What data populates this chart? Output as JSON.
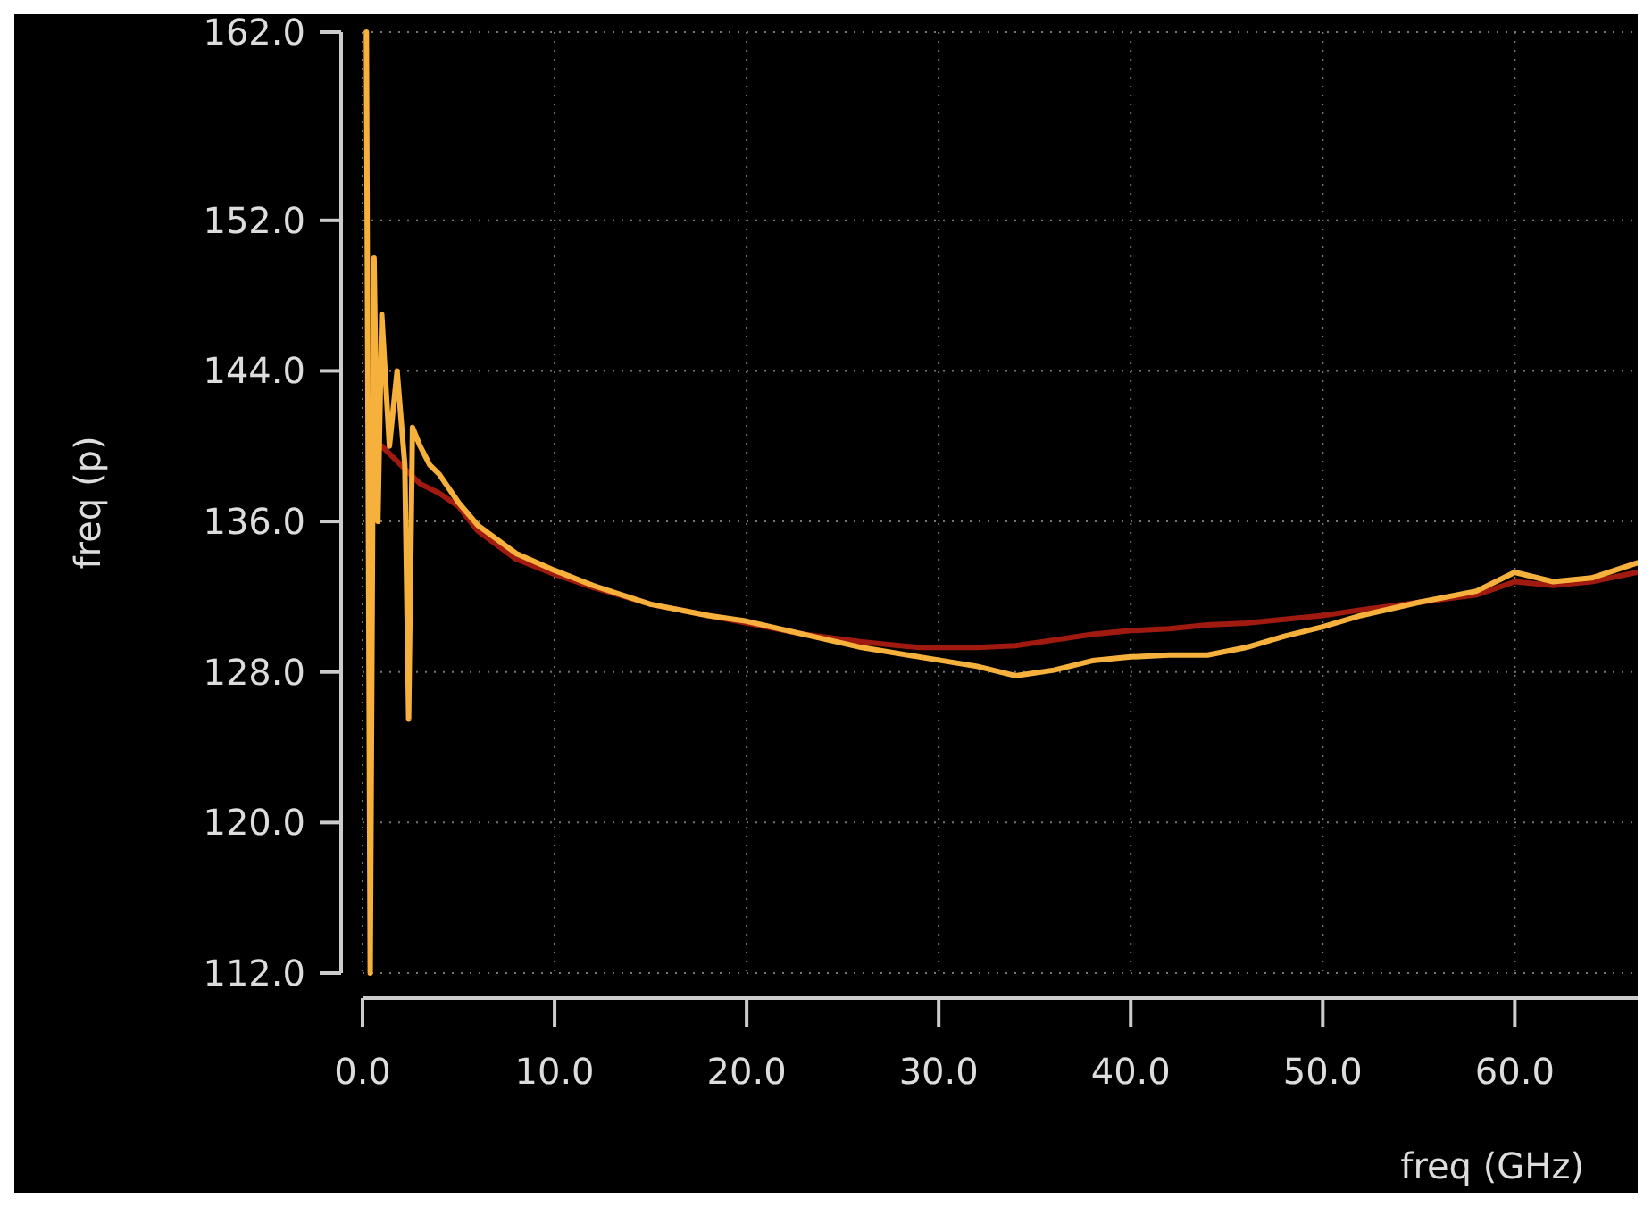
{
  "chart_data": {
    "type": "line",
    "xlabel": "freq (GHz)",
    "ylabel": "freq (p)",
    "xlim": [
      0,
      66.4
    ],
    "xticks": [
      {
        "value": 0,
        "label": "0.0"
      },
      {
        "value": 10,
        "label": "10.0"
      },
      {
        "value": 20,
        "label": "20.0"
      },
      {
        "value": 30,
        "label": "30.0"
      },
      {
        "value": 40,
        "label": "40.0"
      },
      {
        "value": 50,
        "label": "50.0"
      },
      {
        "value": 60,
        "label": "60.0"
      }
    ],
    "ylim": [
      112,
      162
    ],
    "yticks": [
      {
        "value": 112,
        "label": "112.0"
      },
      {
        "value": 120,
        "label": "120.0"
      },
      {
        "value": 128,
        "label": "128.0"
      },
      {
        "value": 136,
        "label": "136.0"
      },
      {
        "value": 144,
        "label": "144.0"
      },
      {
        "value": 152,
        "label": "152.0"
      },
      {
        "value": 162,
        "label": "162.0"
      }
    ],
    "grid": true,
    "marker": "none",
    "line_style": "solid",
    "series": [
      {
        "color": "#a01a10",
        "x": [
          1,
          2,
          3,
          4,
          5,
          6,
          8,
          10,
          12,
          15,
          18,
          20,
          23,
          26,
          29,
          32,
          34,
          36,
          38,
          40,
          42,
          44,
          46,
          48,
          50,
          52,
          55,
          58,
          60,
          62,
          64,
          66.4
        ],
        "values": [
          140,
          139,
          138,
          137.5,
          136.8,
          135.5,
          134,
          133.2,
          132.5,
          131.6,
          131,
          130.6,
          130,
          129.6,
          129.3,
          129.3,
          129.4,
          129.7,
          130,
          130.2,
          130.3,
          130.5,
          130.6,
          130.8,
          131,
          131.3,
          131.7,
          132.1,
          132.8,
          132.6,
          132.8,
          133.3
        ]
      },
      {
        "color": "#f5b13c",
        "x": [
          0.2,
          0.4,
          0.6,
          0.8,
          1,
          1.4,
          1.8,
          2.2,
          2.4,
          2.6,
          3,
          3.5,
          4,
          5,
          6,
          8,
          10,
          12,
          15,
          18,
          20,
          23,
          26,
          29,
          32,
          34,
          36,
          38,
          40,
          42,
          44,
          46,
          48,
          50,
          52,
          55,
          58,
          60,
          62,
          64,
          66.4
        ],
        "values": [
          162,
          112,
          150,
          136,
          147,
          140,
          144,
          139,
          125.5,
          141,
          140,
          139,
          138.5,
          137,
          135.8,
          134.3,
          133.4,
          132.6,
          131.6,
          131,
          130.7,
          130,
          129.3,
          128.8,
          128.3,
          127.8,
          128.1,
          128.6,
          128.8,
          128.9,
          128.9,
          129.3,
          129.9,
          130.4,
          131,
          131.7,
          132.3,
          133.3,
          132.8,
          133,
          133.8
        ]
      }
    ]
  }
}
